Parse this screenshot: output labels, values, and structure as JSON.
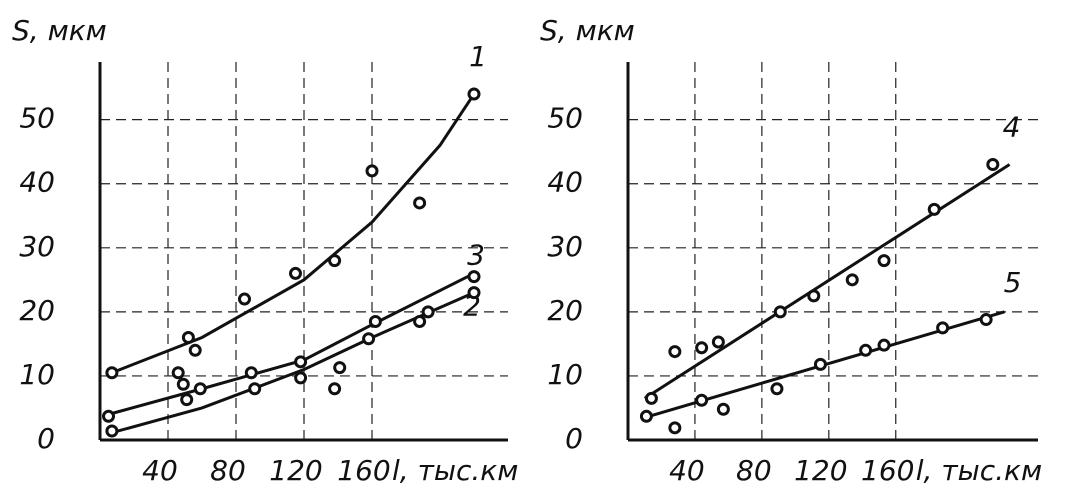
{
  "chart_data": [
    {
      "type": "scatter",
      "y_label": "S, мкм",
      "x_label": "l, тыс.км",
      "xlim": [
        0,
        240
      ],
      "ylim": [
        0,
        59
      ],
      "xticks": [
        40,
        80,
        120,
        160
      ],
      "yticks": [
        0,
        10,
        20,
        30,
        40,
        50
      ],
      "grid": true,
      "color": "#111111",
      "series": [
        {
          "name": "1",
          "x": [
            7,
            52,
            56,
            85,
            115,
            138,
            160,
            188,
            220
          ],
          "values": [
            10.5,
            16,
            14,
            22,
            26,
            28,
            42,
            37,
            54
          ],
          "fit_x": [
            7,
            60,
            120,
            160,
            200,
            220
          ],
          "fit_values": [
            10.5,
            16,
            25,
            34,
            46,
            54
          ]
        },
        {
          "name": "2",
          "x": [
            5,
            46,
            49,
            59,
            89,
            118,
            141,
            162,
            220
          ],
          "values": [
            3.7,
            10.5,
            8.7,
            8,
            10.5,
            9.7,
            11.3,
            18.5,
            25.5
          ],
          "fit_x": [
            5,
            60,
            120,
            160,
            220
          ],
          "fit_values": [
            4,
            8,
            12.5,
            18,
            26
          ]
        },
        {
          "name": "3",
          "x": [
            7,
            51,
            91,
            118,
            138,
            158,
            188,
            193,
            220
          ],
          "values": [
            1.4,
            6.3,
            8,
            12.2,
            8,
            15.8,
            18.5,
            20,
            23
          ],
          "fit_x": [
            5,
            60,
            120,
            160,
            220
          ],
          "fit_values": [
            1,
            5,
            11,
            16,
            23
          ]
        }
      ]
    },
    {
      "type": "scatter",
      "y_label": "S, мкм",
      "x_label": "l, тыс.км",
      "xlim": [
        0,
        245
      ],
      "ylim": [
        0,
        59
      ],
      "xticks": [
        40,
        80,
        120,
        160
      ],
      "yticks": [
        0,
        10,
        20,
        30,
        40,
        50
      ],
      "grid": true,
      "color": "#111111",
      "series": [
        {
          "name": "4",
          "x": [
            14,
            28,
            44,
            54,
            91,
            111,
            134,
            153,
            183,
            218
          ],
          "values": [
            6.5,
            13.8,
            14.4,
            15.3,
            20,
            22.5,
            25,
            28,
            36,
            43
          ],
          "fit_x": [
            10,
            228
          ],
          "fit_values": [
            6.5,
            43
          ]
        },
        {
          "name": "5",
          "x": [
            11,
            28,
            44,
            57,
            89,
            115,
            142,
            153,
            188,
            214
          ],
          "values": [
            3.7,
            1.9,
            6.2,
            4.8,
            8,
            11.8,
            14,
            14.8,
            17.5,
            18.8
          ],
          "fit_x": [
            10,
            225
          ],
          "fit_values": [
            3.5,
            20
          ]
        }
      ]
    }
  ]
}
